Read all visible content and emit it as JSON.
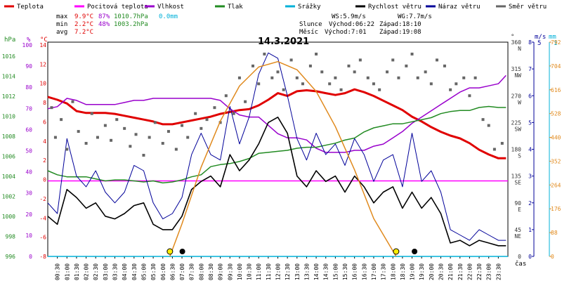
{
  "legend": [
    {
      "label": "Teplota",
      "color": "#e00000"
    },
    {
      "label": "Pocitová teplota",
      "color": "#ff00ff"
    },
    {
      "label": "Vlhkost",
      "color": "#9900cc"
    },
    {
      "label": "Tlak",
      "color": "#228b22"
    },
    {
      "label": "Srážky",
      "color": "#00b0d8"
    },
    {
      "label": "Rychlost větru",
      "color": "#000000"
    },
    {
      "label": "Náraz větru",
      "color": "#000099"
    },
    {
      "label": "Směr větru",
      "color": "#666666"
    }
  ],
  "stats": {
    "max_label": "max",
    "max_temp": "9.9°C",
    "max_hum": "87%",
    "max_press": "1010.7hPa",
    "max_rain": "0.0mm",
    "min_label": "min",
    "min_temp": "2.2°C",
    "min_hum": "48%",
    "min_press": "1003.2hPa",
    "avg_label": "avg",
    "avg_temp": "7.2°C"
  },
  "wind_info": {
    "ws": "WS:5.9m/s",
    "wg": "WG:7.7m/s"
  },
  "sun_info": {
    "sun_label": "Slunce",
    "sun_rise": "Východ:06:22",
    "sun_set": "Západ:18:10",
    "moon_label": "Měsíc",
    "moon_rise": "Východ:7:01",
    "moon_set": "Západ:19:08"
  },
  "title": "14.3.2021",
  "axes": {
    "hpa_label": "hPa",
    "pct_label": "%",
    "temp_label": "°C",
    "deg_label": "°",
    "ms_label": "m/s",
    "mm_label": "mm",
    "time_label": "čas",
    "hpa_ticks": [
      "1016",
      "1014",
      "1012",
      "1010",
      "1008",
      "1006",
      "1004",
      "1002",
      "1000",
      "998",
      "996"
    ],
    "pct_ticks": [
      "100",
      "90",
      "80",
      "70",
      "60",
      "50",
      "40",
      "30",
      "20",
      "10",
      "0"
    ],
    "temp_ticks": [
      "14",
      "12",
      "10",
      "8",
      "6",
      "4",
      "2",
      "0",
      "-2",
      "-4",
      "-6",
      "-8"
    ],
    "dir_ticks": [
      {
        "deg": "360",
        "dir": "N"
      },
      {
        "deg": "315",
        "dir": "NW"
      },
      {
        "deg": "270",
        "dir": "W"
      },
      {
        "deg": "225",
        "dir": "SW"
      },
      {
        "deg": "180",
        "dir": "S"
      },
      {
        "deg": "135",
        "dir": "SE"
      },
      {
        "deg": "90",
        "dir": "E"
      },
      {
        "deg": "45",
        "dir": "NE"
      },
      {
        "deg": "0",
        "dir": ""
      }
    ],
    "ms_ticks": [
      "8",
      "7",
      "6",
      "5",
      "4",
      "3",
      "2",
      "1",
      "0"
    ],
    "ms_top": "5",
    "mm_top": "1",
    "solar_ticks": [
      "792",
      "704",
      "616",
      "528",
      "440",
      "352",
      "264",
      "176",
      "88",
      "0"
    ],
    "time_ticks": [
      "00:30",
      "01:00",
      "01:30",
      "02:00",
      "02:30",
      "03:00",
      "03:30",
      "04:00",
      "04:30",
      "05:00",
      "05:30",
      "06:00",
      "06:30",
      "07:00",
      "07:30",
      "08:00",
      "08:30",
      "09:00",
      "09:30",
      "10:00",
      "10:30",
      "11:00",
      "11:30",
      "12:00",
      "12:30",
      "13:00",
      "13:30",
      "14:00",
      "14:30",
      "15:00",
      "15:30",
      "16:00",
      "16:30",
      "17:00",
      "17:30",
      "18:00",
      "18:30",
      "19:00",
      "19:30",
      "20:00",
      "20:30",
      "21:00",
      "21:30",
      "22:00",
      "22:30",
      "23:00",
      "23:30"
    ]
  },
  "chart_data": {
    "type": "line",
    "title": "14.3.2021",
    "x_unit": "hour of day",
    "xlim": [
      0,
      24
    ],
    "series": [
      {
        "name": "Teplota",
        "axis": "temp_c",
        "color": "#e00000",
        "x": [
          0,
          0.5,
          1,
          1.5,
          2,
          2.5,
          3,
          3.5,
          4,
          4.5,
          5,
          5.5,
          6,
          6.5,
          7,
          7.5,
          8,
          8.5,
          9,
          9.5,
          10,
          10.5,
          11,
          11.5,
          12,
          12.5,
          13,
          13.5,
          14,
          14.5,
          15,
          15.5,
          16,
          16.5,
          17,
          17.5,
          18,
          18.5,
          19,
          19.5,
          20,
          20.5,
          21,
          21.5,
          22,
          22.5,
          23,
          23.5,
          23.9
        ],
        "y": [
          8.9,
          8.6,
          8.2,
          7.4,
          7.2,
          7.2,
          7.2,
          7.1,
          6.9,
          6.7,
          6.5,
          6.3,
          6.0,
          6.0,
          6.2,
          6.4,
          6.6,
          6.8,
          7.1,
          7.3,
          7.5,
          7.6,
          8.0,
          8.6,
          9.3,
          9.0,
          9.5,
          9.6,
          9.5,
          9.3,
          9.1,
          9.3,
          9.7,
          9.4,
          9.0,
          8.5,
          8.0,
          7.5,
          6.8,
          6.3,
          5.7,
          5.2,
          4.8,
          4.5,
          4.0,
          3.3,
          2.8,
          2.4,
          2.4
        ]
      },
      {
        "name": "Pocitová teplota",
        "axis": "temp_c",
        "color": "#ff00ff",
        "x": [
          0,
          24
        ],
        "y": [
          0,
          0
        ]
      },
      {
        "name": "Vlhkost",
        "axis": "humidity_pct",
        "color": "#9900cc",
        "x": [
          0,
          0.5,
          1,
          1.5,
          2,
          2.5,
          3,
          3.5,
          4,
          4.5,
          5,
          5.5,
          6,
          6.5,
          7,
          7.5,
          8,
          8.5,
          9,
          9.5,
          10,
          10.5,
          11,
          11.5,
          12,
          12.5,
          13,
          13.5,
          14,
          14.5,
          15,
          15.5,
          16,
          16.5,
          17,
          17.5,
          18,
          18.5,
          19,
          19.5,
          20,
          20.5,
          21,
          21.5,
          22,
          22.5,
          23,
          23.5,
          23.9
        ],
        "y": [
          71,
          72,
          76,
          75,
          73,
          73,
          73,
          73,
          74,
          75,
          75,
          76,
          76,
          76,
          76,
          76,
          76,
          76,
          75,
          71,
          68,
          67,
          67,
          63,
          59,
          57,
          57,
          56,
          52,
          50,
          50,
          50,
          51,
          51,
          53,
          54,
          57,
          60,
          64,
          67,
          70,
          73,
          76,
          79,
          81,
          81,
          82,
          83,
          87
        ]
      },
      {
        "name": "Tlak",
        "axis": "pressure_hpa",
        "color": "#228b22",
        "x": [
          0,
          0.5,
          1,
          1.5,
          2,
          2.5,
          3,
          3.5,
          4,
          4.5,
          5,
          5.5,
          6,
          6.5,
          7,
          7.5,
          8,
          8.5,
          9,
          9.5,
          10,
          10.5,
          11,
          11.5,
          12,
          12.5,
          13,
          13.5,
          14,
          14.5,
          15,
          15.5,
          16,
          16.5,
          17,
          17.5,
          18,
          18.5,
          19,
          19.5,
          20,
          20.5,
          21,
          21.5,
          22,
          22.5,
          23,
          23.5,
          23.9
        ],
        "y": [
          1004.4,
          1004.0,
          1003.8,
          1003.8,
          1003.8,
          1003.6,
          1003.4,
          1003.5,
          1003.5,
          1003.4,
          1003.3,
          1003.4,
          1003.2,
          1003.3,
          1003.5,
          1003.8,
          1004.0,
          1004.8,
          1005.0,
          1005.1,
          1005.3,
          1005.6,
          1006.1,
          1006.2,
          1006.3,
          1006.4,
          1006.6,
          1006.7,
          1006.7,
          1006.9,
          1007.1,
          1007.4,
          1007.6,
          1008.2,
          1008.6,
          1008.8,
          1009.0,
          1009.0,
          1009.2,
          1009.4,
          1009.6,
          1010.0,
          1010.2,
          1010.3,
          1010.3,
          1010.6,
          1010.7,
          1010.6,
          1010.6
        ]
      },
      {
        "name": "Srážky",
        "axis": "rain_mm",
        "color": "#00b0d8",
        "x": [
          0,
          24
        ],
        "y": [
          0,
          0
        ]
      },
      {
        "name": "Rychlost větru",
        "axis": "wind_ms",
        "color": "#000000",
        "x": [
          0,
          0.5,
          1,
          1.5,
          2,
          2.5,
          3,
          3.5,
          4,
          4.5,
          5,
          5.5,
          6,
          6.5,
          7,
          7.5,
          8,
          8.5,
          9,
          9.5,
          10,
          10.5,
          11,
          11.5,
          12,
          12.5,
          13,
          13.5,
          14,
          14.5,
          15,
          15.5,
          16,
          16.5,
          17,
          17.5,
          18,
          18.5,
          19,
          19.5,
          20,
          20.5,
          21,
          21.5,
          22,
          22.5,
          23,
          23.5,
          23.9
        ],
        "y": [
          1.5,
          1.2,
          2.5,
          2.2,
          1.8,
          2.0,
          1.5,
          1.4,
          1.6,
          1.9,
          2.0,
          1.2,
          1.0,
          1.0,
          1.5,
          2.5,
          2.8,
          3.0,
          2.6,
          3.8,
          3.2,
          3.6,
          4.2,
          5.0,
          5.2,
          4.6,
          3.0,
          2.6,
          3.2,
          2.8,
          3.0,
          2.4,
          3.0,
          2.6,
          2.0,
          2.4,
          2.6,
          1.8,
          2.4,
          1.8,
          2.2,
          1.6,
          0.5,
          0.6,
          0.4,
          0.6,
          0.5,
          0.4,
          0.4
        ]
      },
      {
        "name": "Náraz větru",
        "axis": "wind_ms",
        "color": "#000099",
        "x": [
          0,
          0.5,
          1,
          1.5,
          2,
          2.5,
          3,
          3.5,
          4,
          4.5,
          5,
          5.5,
          6,
          6.5,
          7,
          7.5,
          8,
          8.5,
          9,
          9.5,
          10,
          10.5,
          11,
          11.5,
          12,
          12.5,
          13,
          13.5,
          14,
          14.5,
          15,
          15.5,
          16,
          16.5,
          17,
          17.5,
          18,
          18.5,
          19,
          19.5,
          20,
          20.5,
          21,
          21.5,
          22,
          22.5,
          23,
          23.5,
          23.9
        ],
        "y": [
          2.0,
          1.6,
          4.4,
          3.0,
          2.6,
          3.2,
          2.4,
          2.0,
          2.4,
          3.4,
          3.2,
          2.0,
          1.4,
          1.6,
          2.2,
          3.8,
          4.6,
          3.8,
          3.6,
          5.6,
          4.2,
          5.2,
          6.8,
          7.6,
          7.4,
          6.0,
          4.4,
          3.6,
          4.6,
          3.8,
          4.2,
          3.4,
          4.4,
          3.8,
          2.8,
          3.6,
          3.8,
          2.6,
          4.6,
          2.8,
          3.2,
          2.4,
          1.0,
          0.8,
          0.6,
          1.0,
          0.8,
          0.6,
          0.6
        ]
      },
      {
        "name": "Směr větru",
        "axis": "wind_dir_deg",
        "color": "#666666",
        "style": "points",
        "x": [
          0.2,
          0.4,
          0.7,
          1.0,
          1.3,
          1.6,
          2.0,
          2.3,
          2.6,
          3.0,
          3.3,
          3.6,
          4.0,
          4.3,
          4.6,
          5.0,
          5.3,
          5.6,
          6.0,
          6.3,
          6.7,
          7.0,
          7.3,
          7.7,
          8.0,
          8.3,
          8.7,
          9.0,
          9.3,
          9.7,
          10.0,
          10.3,
          10.7,
          11.0,
          11.3,
          11.7,
          12.0,
          12.3,
          12.7,
          13.0,
          13.3,
          13.7,
          14.0,
          14.3,
          14.7,
          15.0,
          15.3,
          15.7,
          16.0,
          16.3,
          16.7,
          17.0,
          17.3,
          17.7,
          18.0,
          18.3,
          18.7,
          19.0,
          19.3,
          19.7,
          20.0,
          20.3,
          20.7,
          21.0,
          21.3,
          21.7,
          22.0,
          22.3,
          22.7,
          23.0,
          23.3,
          23.7
        ],
        "y": [
          250,
          200,
          230,
          180,
          260,
          210,
          190,
          240,
          200,
          220,
          195,
          230,
          215,
          185,
          205,
          170,
          200,
          225,
          190,
          210,
          180,
          220,
          200,
          240,
          215,
          230,
          250,
          225,
          270,
          240,
          300,
          260,
          320,
          290,
          340,
          300,
          310,
          280,
          330,
          300,
          290,
          320,
          340,
          310,
          290,
          300,
          280,
          320,
          310,
          330,
          300,
          290,
          280,
          310,
          330,
          300,
          320,
          340,
          300,
          310,
          290,
          330,
          320,
          280,
          290,
          300,
          270,
          300,
          230,
          220,
          180,
          190
        ]
      },
      {
        "name": "Solární záření",
        "axis": "solar_wm2",
        "color": "#e08a1e",
        "x": [
          6.37,
          7,
          8,
          9,
          10,
          11,
          12,
          13,
          14,
          15,
          16,
          17,
          18.17
        ],
        "y": [
          0,
          120,
          330,
          500,
          630,
          700,
          720,
          690,
          610,
          480,
          320,
          140,
          0
        ]
      }
    ],
    "axes_info": {
      "pressure_hpa": [
        996,
        1017
      ],
      "humidity_pct": [
        0,
        103
      ],
      "temp_c": [
        -8,
        14.7
      ],
      "wind_dir_deg": [
        0,
        360
      ],
      "wind_ms": [
        0,
        8
      ],
      "solar_wm2": [
        0,
        792
      ],
      "rain_mm": [
        0,
        1
      ]
    },
    "markers": {
      "sunrise_hour": 6.37,
      "sunset_hour": 18.17,
      "moonrise_hour": 7.02,
      "moonset_hour": 19.13
    }
  }
}
